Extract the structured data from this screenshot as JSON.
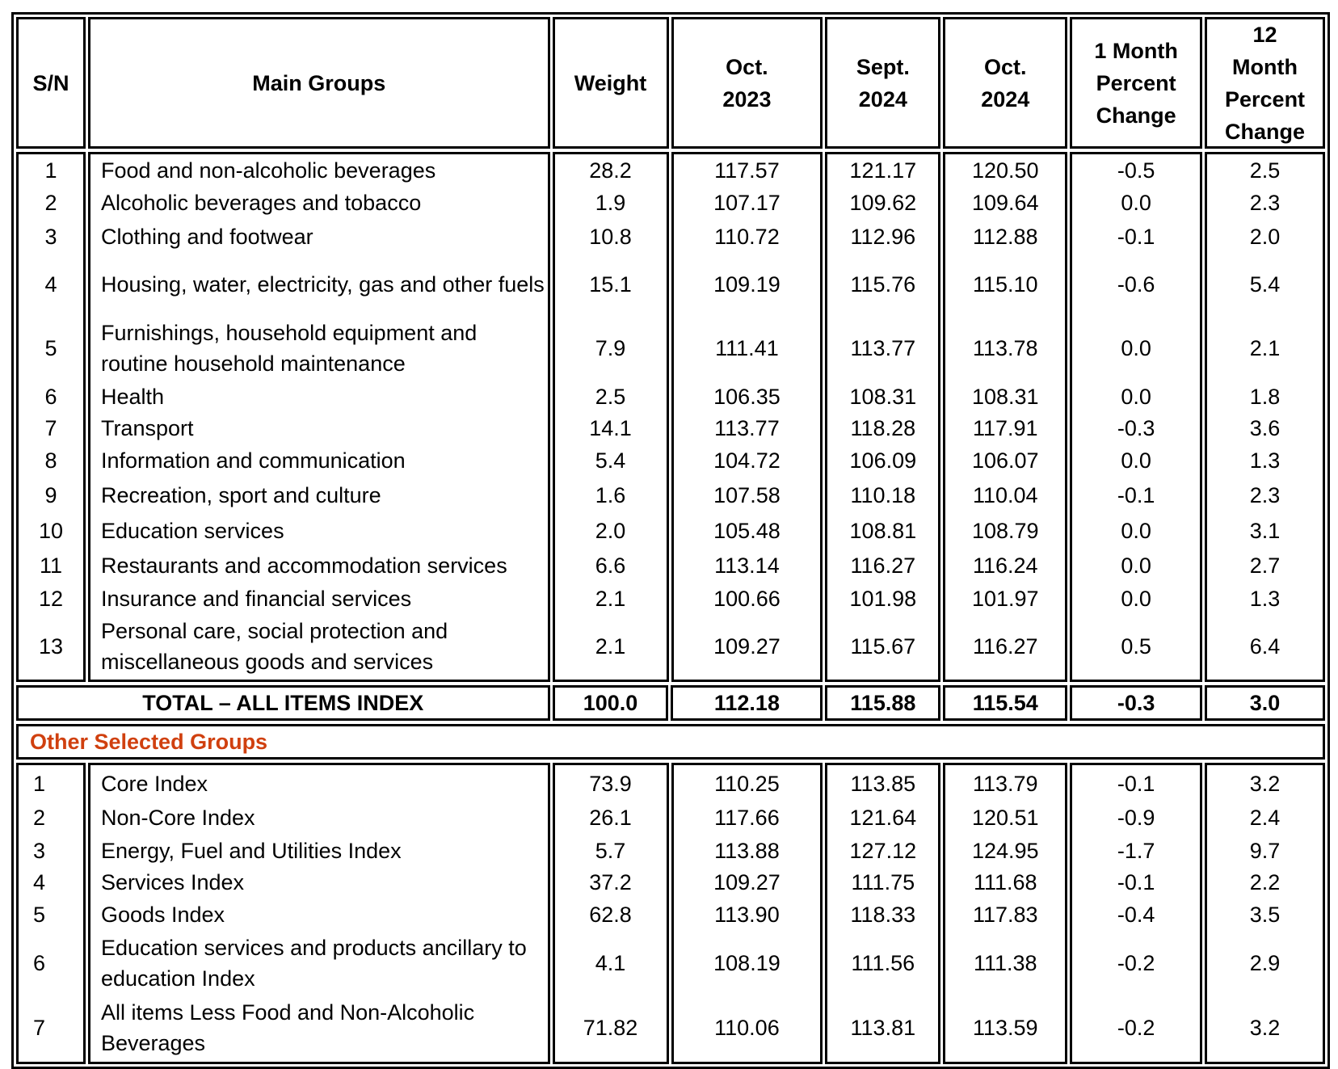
{
  "header": {
    "columns": [
      "S/N",
      "Main Groups",
      "Weight",
      "Oct.\n2023",
      "Sept.\n2024",
      "Oct.\n2024",
      "1 Month\nPercent\nChange",
      "12\nMonth\nPercent\nChange"
    ]
  },
  "main_groups": [
    [
      "1",
      "Food and non-alcoholic beverages",
      "28.2",
      "117.57",
      "121.17",
      "120.50",
      "-0.5",
      "2.5"
    ],
    [
      "2",
      "Alcoholic beverages and tobacco",
      "1.9",
      "107.17",
      "109.62",
      "109.64",
      "0.0",
      "2.3"
    ],
    [
      "3",
      "Clothing and footwear",
      "10.8",
      "110.72",
      "112.96",
      "112.88",
      "-0.1",
      "2.0"
    ],
    [
      "4",
      "Housing, water, electricity, gas and other fuels",
      "15.1",
      "109.19",
      "115.76",
      "115.10",
      "-0.6",
      "5.4"
    ],
    [
      "5",
      "Furnishings, household equipment and routine household maintenance",
      "7.9",
      "111.41",
      "113.77",
      "113.78",
      "0.0",
      "2.1"
    ],
    [
      "6",
      "Health",
      "2.5",
      "106.35",
      "108.31",
      "108.31",
      "0.0",
      "1.8"
    ],
    [
      "7",
      "Transport",
      "14.1",
      "113.77",
      "118.28",
      "117.91",
      "-0.3",
      "3.6"
    ],
    [
      "8",
      "Information and communication",
      "5.4",
      "104.72",
      "106.09",
      "106.07",
      "0.0",
      "1.3"
    ],
    [
      "9",
      "Recreation, sport and culture",
      "1.6",
      "107.58",
      "110.18",
      "110.04",
      "-0.1",
      "2.3"
    ],
    [
      "10",
      "Education services",
      "2.0",
      "105.48",
      "108.81",
      "108.79",
      "0.0",
      "3.1"
    ],
    [
      "11",
      "Restaurants and accommodation services",
      "6.6",
      "113.14",
      "116.27",
      "116.24",
      "0.0",
      "2.7"
    ],
    [
      "12",
      "Insurance and financial services",
      "2.1",
      "100.66",
      "101.98",
      "101.97",
      "0.0",
      "1.3"
    ],
    [
      "13",
      "Personal care, social protection and miscellaneous goods and services",
      "2.1",
      "109.27",
      "115.67",
      "116.27",
      "0.5",
      "6.4"
    ]
  ],
  "total": {
    "label": "TOTAL – ALL ITEMS INDEX",
    "values": [
      "100.0",
      "112.18",
      "115.88",
      "115.54",
      "-0.3",
      "3.0"
    ]
  },
  "other_groups": {
    "title": "Other Selected Groups",
    "title_color": "#D0400F",
    "rows": [
      [
        "1",
        "Core Index",
        "73.9",
        "110.25",
        "113.85",
        "113.79",
        "-0.1",
        "3.2"
      ],
      [
        "2",
        "Non-Core Index",
        "26.1",
        "117.66",
        "121.64",
        "120.51",
        "-0.9",
        "2.4"
      ],
      [
        "3",
        "Energy, Fuel and Utilities Index",
        "5.7",
        "113.88",
        "127.12",
        "124.95",
        "-1.7",
        "9.7"
      ],
      [
        "4",
        "Services Index",
        "37.2",
        "109.27",
        "111.75",
        "111.68",
        "-0.1",
        "2.2"
      ],
      [
        "5",
        "Goods Index",
        "62.8",
        "113.90",
        "118.33",
        "117.83",
        "-0.4",
        "3.5"
      ],
      [
        "6",
        "Education services and products ancillary to education Index",
        "4.1",
        "108.19",
        "111.56",
        "111.38",
        "-0.2",
        "2.9"
      ],
      [
        "7",
        "All items Less Food and Non-Alcoholic Beverages",
        "71.82",
        "110.06",
        "113.81",
        "113.59",
        "-0.2",
        "3.2"
      ]
    ]
  }
}
